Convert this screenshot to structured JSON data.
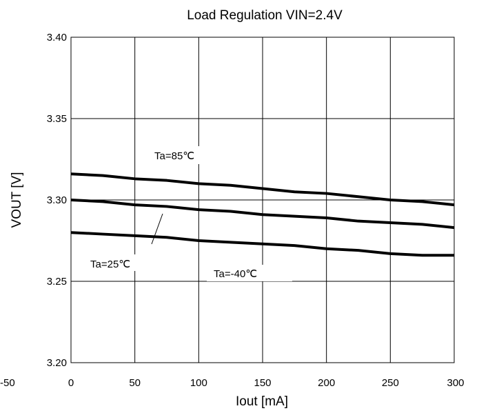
{
  "chart_data": {
    "type": "line",
    "title": "Load Regulation VIN=2.4V",
    "xlabel": "Iout [mA]",
    "ylabel": "VOUT [V]",
    "xlim": [
      0,
      300
    ],
    "ylim": [
      3.2,
      3.4
    ],
    "xticks": [
      "-50",
      "0",
      "50",
      "100",
      "150",
      "200",
      "250",
      "300"
    ],
    "yticks": [
      "3.20",
      "3.25",
      "3.30",
      "3.35",
      "3.40"
    ],
    "grid": true,
    "series": [
      {
        "name": "Ta=85°C",
        "x": [
          0,
          25,
          50,
          75,
          100,
          125,
          150,
          175,
          200,
          225,
          250,
          275,
          300
        ],
        "values": [
          3.316,
          3.315,
          3.313,
          3.312,
          3.31,
          3.309,
          3.307,
          3.305,
          3.304,
          3.302,
          3.3,
          3.299,
          3.297
        ]
      },
      {
        "name": "Ta=25°C",
        "x": [
          0,
          25,
          50,
          75,
          100,
          125,
          150,
          175,
          200,
          225,
          250,
          275,
          300
        ],
        "values": [
          3.3,
          3.299,
          3.297,
          3.296,
          3.294,
          3.293,
          3.291,
          3.29,
          3.289,
          3.287,
          3.286,
          3.285,
          3.283
        ]
      },
      {
        "name": "Ta=-40°C",
        "x": [
          0,
          25,
          50,
          75,
          100,
          125,
          150,
          175,
          200,
          225,
          250,
          275,
          300
        ],
        "values": [
          3.28,
          3.279,
          3.278,
          3.277,
          3.275,
          3.274,
          3.273,
          3.272,
          3.27,
          3.269,
          3.267,
          3.266,
          3.266
        ]
      }
    ],
    "annotations": [
      "Ta=85℃",
      "Ta=25℃",
      "Ta=-40℃"
    ]
  }
}
